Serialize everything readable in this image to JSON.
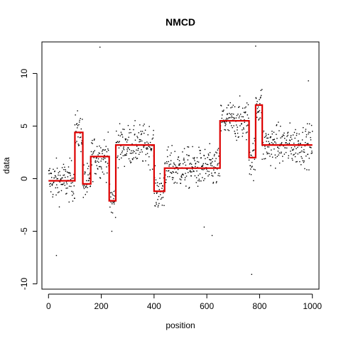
{
  "chart_data": {
    "type": "scatter",
    "title": "NMCD",
    "xlabel": "position",
    "ylabel": "data",
    "xlim": [
      -25,
      1025
    ],
    "ylim": [
      -10.5,
      13
    ],
    "x_ticks": [
      0,
      200,
      400,
      600,
      800,
      1000
    ],
    "y_ticks": [
      -10,
      -5,
      0,
      5,
      10
    ],
    "x_tick_labels": [
      "0",
      "200",
      "400",
      "600",
      "800",
      "1000"
    ],
    "y_tick_labels": [
      "-10",
      "-5",
      "0",
      "5",
      "10"
    ],
    "grid": false,
    "point_color": "#000000",
    "segment_color": "#dd0000",
    "segments": [
      {
        "x0": 0,
        "x1": 100,
        "mean": -0.2
      },
      {
        "x0": 100,
        "x1": 130,
        "mean": 4.4
      },
      {
        "x0": 130,
        "x1": 160,
        "mean": -0.5
      },
      {
        "x0": 160,
        "x1": 230,
        "mean": 2.1
      },
      {
        "x0": 230,
        "x1": 255,
        "mean": -2.1
      },
      {
        "x0": 255,
        "x1": 400,
        "mean": 3.2
      },
      {
        "x0": 400,
        "x1": 440,
        "mean": -1.2
      },
      {
        "x0": 440,
        "x1": 650,
        "mean": 1.0
      },
      {
        "x0": 650,
        "x1": 760,
        "mean": 5.5
      },
      {
        "x0": 760,
        "x1": 785,
        "mean": 2.0
      },
      {
        "x0": 785,
        "x1": 810,
        "mean": 7.0
      },
      {
        "x0": 810,
        "x1": 1000,
        "mean": 3.2
      }
    ],
    "outliers": [
      {
        "x": 30,
        "y": -7.3
      },
      {
        "x": 195,
        "y": 12.5
      },
      {
        "x": 240,
        "y": -5.0
      },
      {
        "x": 590,
        "y": -4.6
      },
      {
        "x": 620,
        "y": -5.4
      },
      {
        "x": 770,
        "y": -9.1
      },
      {
        "x": 785,
        "y": 12.6
      },
      {
        "x": 985,
        "y": 9.3
      }
    ]
  }
}
